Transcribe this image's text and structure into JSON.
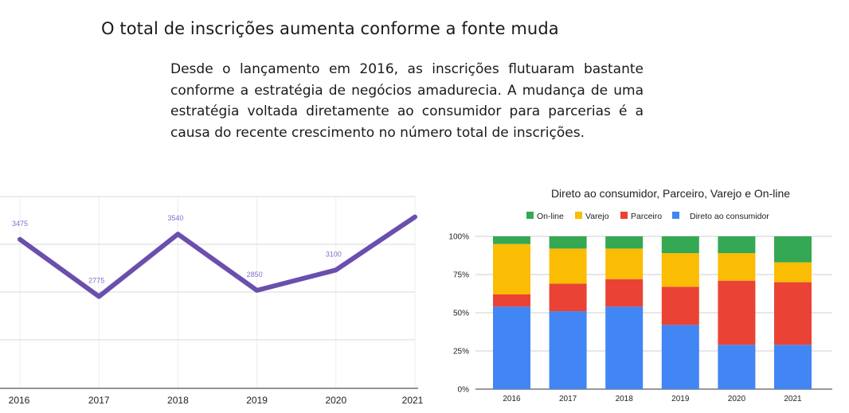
{
  "title": "O total de inscrições aumenta conforme a fonte muda",
  "paragraph": "Desde o lançamento em 2016, as inscrições flutuaram bastante conforme a estratégia de negócios amadurecia. A mudança de uma estratégia voltada diretamente ao consumidor para parcerias é a causa do recente crescimento no número total de inscrições.",
  "chart_data": [
    {
      "type": "line",
      "title": "",
      "x": [
        "2016",
        "2017",
        "2018",
        "2019",
        "2020",
        "2021"
      ],
      "series": [
        {
          "values": [
            3475,
            2775,
            3540,
            2850,
            3100,
            3750
          ],
          "point_labels": [
            "3475",
            "2775",
            "3540",
            "2850",
            "3100",
            ""
          ]
        }
      ],
      "ylim": [
        1650,
        4000
      ],
      "grid": true,
      "colors": {
        "line": "#6a4fae",
        "label": "#8070c8",
        "grid": "#d9d9d9"
      }
    },
    {
      "type": "bar",
      "stacked": true,
      "normalized": true,
      "title": "Direto ao consumidor, Parceiro, Varejo e On-line",
      "categories": [
        "2016",
        "2017",
        "2018",
        "2019",
        "2020",
        "2021"
      ],
      "legend_position": "top",
      "legend": [
        "On-line",
        "Varejo",
        "Parceiro",
        "Direto ao consumidor"
      ],
      "series": [
        {
          "name": "Direto ao consumidor",
          "color": "#4285f4",
          "values": [
            54,
            51,
            54,
            42,
            29,
            29
          ]
        },
        {
          "name": "Parceiro",
          "color": "#ea4335",
          "values": [
            8,
            18,
            18,
            25,
            42,
            41
          ]
        },
        {
          "name": "Varejo",
          "color": "#fbbc04",
          "values": [
            33,
            23,
            20,
            22,
            18,
            13
          ]
        },
        {
          "name": "On-line",
          "color": "#34a853",
          "values": [
            5,
            8,
            8,
            11,
            11,
            17
          ]
        }
      ],
      "yticks": [
        "0%",
        "25%",
        "50%",
        "75%",
        "100%"
      ],
      "ylim": [
        0,
        100
      ],
      "grid": true
    }
  ]
}
